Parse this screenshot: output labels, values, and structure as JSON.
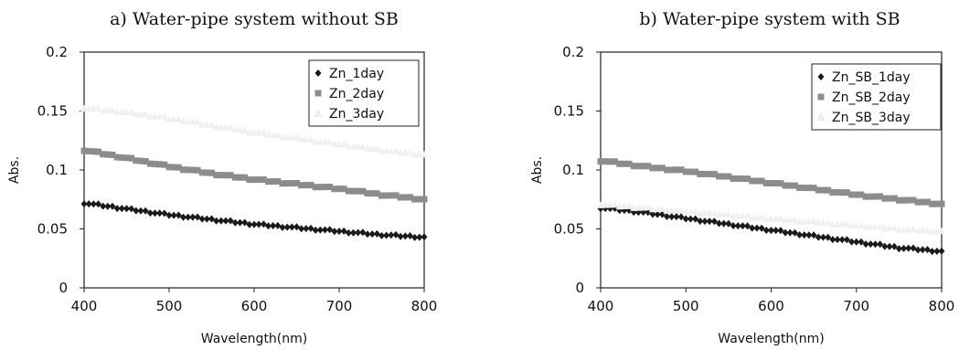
{
  "chart_data": [
    {
      "type": "line",
      "title": "a) Water-pipe system without SB",
      "xlabel": "Wavelength(nm)",
      "ylabel": "Abs.",
      "xlim": [
        400,
        800
      ],
      "ylim": [
        0,
        0.2
      ],
      "xticks": [
        "400",
        "500",
        "600",
        "700",
        "800"
      ],
      "yticks": [
        "0",
        "0.05",
        "0.1",
        "0.15",
        "0.2"
      ],
      "legend_position": "top-right",
      "x": [
        400,
        450,
        500,
        550,
        600,
        650,
        700,
        750,
        800
      ],
      "series": [
        {
          "name": "Zn_1day",
          "color": "#1a1a1a",
          "marker": "diamond",
          "values": [
            0.072,
            0.067,
            0.062,
            0.058,
            0.054,
            0.051,
            0.048,
            0.045,
            0.043
          ]
        },
        {
          "name": "Zn_2day",
          "color": "#8c8c8c",
          "marker": "square",
          "values": [
            0.117,
            0.11,
            0.103,
            0.097,
            0.092,
            0.088,
            0.084,
            0.079,
            0.075
          ]
        },
        {
          "name": "Zn_3day",
          "color": "#f0f0f0",
          "marker": "triangle",
          "values": [
            0.153,
            0.149,
            0.144,
            0.138,
            0.132,
            0.127,
            0.122,
            0.117,
            0.113
          ]
        }
      ]
    },
    {
      "type": "line",
      "title": "b) Water-pipe system with SB",
      "xlabel": "Wavelength(nm)",
      "ylabel": "Abs.",
      "xlim": [
        400,
        800
      ],
      "ylim": [
        0,
        0.2
      ],
      "xticks": [
        "400",
        "500",
        "600",
        "700",
        "800"
      ],
      "yticks": [
        "0",
        "0.05",
        "0.1",
        "0.15",
        "0.2"
      ],
      "legend_position": "top-right",
      "x": [
        400,
        450,
        500,
        550,
        600,
        650,
        700,
        750,
        800
      ],
      "series": [
        {
          "name": "Zn_SB_1day",
          "color": "#1a1a1a",
          "marker": "diamond",
          "values": [
            0.068,
            0.064,
            0.059,
            0.054,
            0.049,
            0.044,
            0.039,
            0.034,
            0.031
          ]
        },
        {
          "name": "Zn_SB_2day",
          "color": "#8c8c8c",
          "marker": "square",
          "values": [
            0.108,
            0.103,
            0.099,
            0.094,
            0.089,
            0.084,
            0.079,
            0.075,
            0.071
          ]
        },
        {
          "name": "Zn_SB_3day",
          "color": "#f0f0f0",
          "marker": "triangle",
          "values": [
            0.071,
            0.068,
            0.065,
            0.062,
            0.059,
            0.056,
            0.053,
            0.05,
            0.048
          ]
        }
      ]
    }
  ]
}
